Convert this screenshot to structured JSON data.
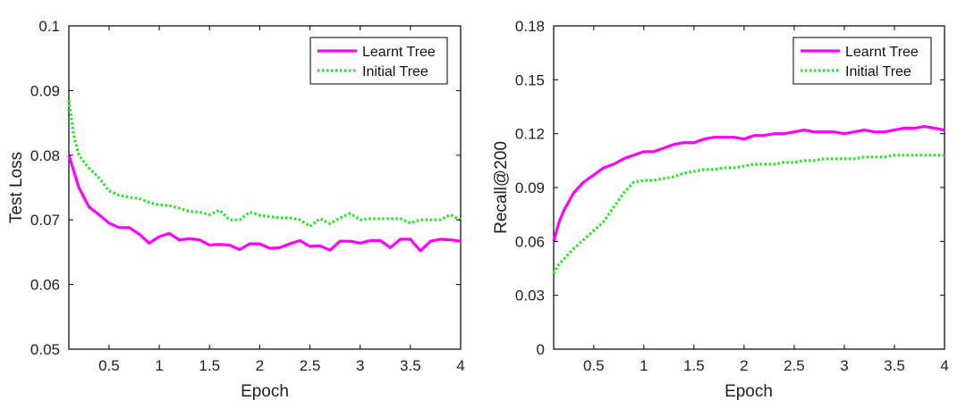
{
  "colors": {
    "learnt": "#ff00ff",
    "initial": "#22e822",
    "axis": "#000000"
  },
  "chart_data": [
    {
      "type": "line",
      "xlabel": "Epoch",
      "ylabel": "Test Loss",
      "xlim": [
        0.1,
        4
      ],
      "ylim": [
        0.05,
        0.1
      ],
      "xticks": [
        0.5,
        1,
        1.5,
        2,
        2.5,
        3,
        3.5,
        4
      ],
      "xtick_labels": [
        "0.5",
        "1",
        "1.5",
        "2",
        "2.5",
        "3",
        "3.5",
        "4"
      ],
      "yticks": [
        0.05,
        0.06,
        0.07,
        0.08,
        0.09,
        0.1
      ],
      "ytick_labels": [
        "0.05",
        "0.06",
        "0.07",
        "0.08",
        "0.09",
        "0.1"
      ],
      "legend_position": "top-right",
      "series": [
        {
          "name": "Learnt Tree",
          "style": "solid",
          "x": [
            0.1,
            0.15,
            0.2,
            0.3,
            0.4,
            0.5,
            0.6,
            0.7,
            0.8,
            0.9,
            1.0,
            1.1,
            1.2,
            1.3,
            1.4,
            1.5,
            1.6,
            1.7,
            1.8,
            1.9,
            2.0,
            2.1,
            2.2,
            2.3,
            2.4,
            2.5,
            2.6,
            2.7,
            2.8,
            2.9,
            3.0,
            3.1,
            3.2,
            3.3,
            3.4,
            3.5,
            3.6,
            3.7,
            3.8,
            3.9,
            4.0
          ],
          "values": [
            0.08,
            0.0775,
            0.075,
            0.072,
            0.0708,
            0.0695,
            0.0688,
            0.0688,
            0.0678,
            0.0664,
            0.0674,
            0.0679,
            0.0669,
            0.0671,
            0.0669,
            0.0661,
            0.0662,
            0.0661,
            0.0654,
            0.0663,
            0.0663,
            0.0656,
            0.0657,
            0.0663,
            0.0668,
            0.0659,
            0.066,
            0.0653,
            0.0667,
            0.0667,
            0.0664,
            0.0668,
            0.0668,
            0.0657,
            0.067,
            0.067,
            0.0652,
            0.0667,
            0.067,
            0.0669,
            0.0667
          ]
        },
        {
          "name": "Initial Tree",
          "style": "dotted",
          "x": [
            0.1,
            0.15,
            0.2,
            0.3,
            0.4,
            0.5,
            0.6,
            0.7,
            0.8,
            0.9,
            1.0,
            1.1,
            1.2,
            1.3,
            1.4,
            1.5,
            1.6,
            1.7,
            1.8,
            1.9,
            2.0,
            2.1,
            2.2,
            2.3,
            2.4,
            2.5,
            2.6,
            2.7,
            2.8,
            2.9,
            3.0,
            3.1,
            3.2,
            3.3,
            3.4,
            3.5,
            3.6,
            3.7,
            3.8,
            3.9,
            4.0
          ],
          "values": [
            0.0885,
            0.083,
            0.08,
            0.078,
            0.0765,
            0.0745,
            0.0738,
            0.0735,
            0.0733,
            0.0727,
            0.0723,
            0.0722,
            0.0718,
            0.0713,
            0.0712,
            0.0708,
            0.0715,
            0.07,
            0.07,
            0.0712,
            0.0707,
            0.0705,
            0.0703,
            0.0703,
            0.07,
            0.069,
            0.0702,
            0.0694,
            0.0703,
            0.071,
            0.07,
            0.0702,
            0.0702,
            0.0702,
            0.0702,
            0.0695,
            0.07,
            0.07,
            0.07,
            0.0708,
            0.07
          ]
        }
      ]
    },
    {
      "type": "line",
      "xlabel": "Epoch",
      "ylabel": "Recall@200",
      "xlim": [
        0.1,
        4
      ],
      "ylim": [
        0,
        0.18
      ],
      "xticks": [
        0.5,
        1,
        1.5,
        2,
        2.5,
        3,
        3.5,
        4
      ],
      "xtick_labels": [
        "0.5",
        "1",
        "1.5",
        "2",
        "2.5",
        "3",
        "3.5",
        "4"
      ],
      "yticks": [
        0,
        0.03,
        0.06,
        0.09,
        0.12,
        0.15,
        0.18
      ],
      "ytick_labels": [
        "0",
        "0.03",
        "0.06",
        "0.09",
        "0.12",
        "0.15",
        "0.18"
      ],
      "legend_position": "top-right",
      "series": [
        {
          "name": "Learnt Tree",
          "style": "solid",
          "x": [
            0.1,
            0.15,
            0.2,
            0.3,
            0.4,
            0.5,
            0.6,
            0.7,
            0.8,
            0.9,
            1.0,
            1.1,
            1.2,
            1.3,
            1.4,
            1.5,
            1.6,
            1.7,
            1.8,
            1.9,
            2.0,
            2.1,
            2.2,
            2.3,
            2.4,
            2.5,
            2.6,
            2.7,
            2.8,
            2.9,
            3.0,
            3.1,
            3.2,
            3.3,
            3.4,
            3.5,
            3.6,
            3.7,
            3.8,
            3.9,
            4.0
          ],
          "values": [
            0.06,
            0.07,
            0.077,
            0.087,
            0.093,
            0.097,
            0.101,
            0.103,
            0.106,
            0.108,
            0.11,
            0.11,
            0.112,
            0.114,
            0.115,
            0.115,
            0.117,
            0.118,
            0.118,
            0.118,
            0.117,
            0.119,
            0.119,
            0.12,
            0.12,
            0.121,
            0.122,
            0.121,
            0.121,
            0.121,
            0.12,
            0.121,
            0.122,
            0.121,
            0.121,
            0.122,
            0.123,
            0.123,
            0.124,
            0.123,
            0.122
          ]
        },
        {
          "name": "Initial Tree",
          "style": "dotted",
          "x": [
            0.1,
            0.15,
            0.2,
            0.3,
            0.4,
            0.5,
            0.6,
            0.7,
            0.8,
            0.9,
            1.0,
            1.1,
            1.2,
            1.3,
            1.4,
            1.5,
            1.6,
            1.7,
            1.8,
            1.9,
            2.0,
            2.1,
            2.2,
            2.3,
            2.4,
            2.5,
            2.6,
            2.7,
            2.8,
            2.9,
            3.0,
            3.1,
            3.2,
            3.3,
            3.4,
            3.5,
            3.6,
            3.7,
            3.8,
            3.9,
            4.0
          ],
          "values": [
            0.042,
            0.047,
            0.05,
            0.056,
            0.061,
            0.066,
            0.071,
            0.079,
            0.087,
            0.093,
            0.094,
            0.094,
            0.095,
            0.096,
            0.098,
            0.099,
            0.1,
            0.1,
            0.101,
            0.101,
            0.102,
            0.103,
            0.103,
            0.103,
            0.104,
            0.104,
            0.105,
            0.105,
            0.106,
            0.106,
            0.106,
            0.106,
            0.107,
            0.107,
            0.107,
            0.108,
            0.108,
            0.108,
            0.108,
            0.108,
            0.108
          ]
        }
      ]
    }
  ]
}
